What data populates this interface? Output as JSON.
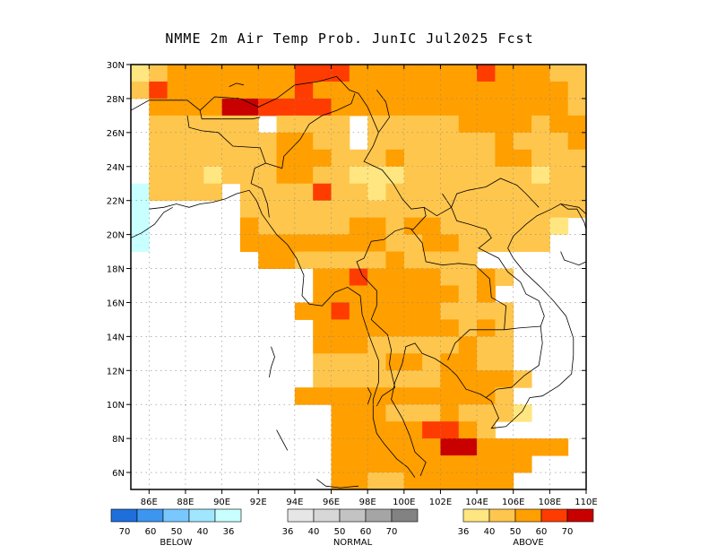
{
  "title": "NMME 2m Air Temp Prob. JunIC  Jul2025 Fcst",
  "map": {
    "lon_range": [
      85,
      110
    ],
    "lat_range": [
      5,
      30
    ],
    "x_ticks": [
      "86E",
      "88E",
      "90E",
      "92E",
      "94E",
      "96E",
      "98E",
      "100E",
      "102E",
      "104E",
      "106E",
      "108E",
      "110E"
    ],
    "y_ticks": [
      "6N",
      "8N",
      "10N",
      "12N",
      "14N",
      "16N",
      "18N",
      "20N",
      "22N",
      "24N",
      "26N",
      "28N",
      "30N"
    ],
    "grid": "dotted"
  },
  "colors": {
    "above_36": "#ffe680",
    "above_40": "#ffc64d",
    "above_50": "#ff9f00",
    "above_60": "#ff3c00",
    "above_70": "#c80000",
    "below_36": "#c8ffff",
    "below_40": "#a0e6ff",
    "below_50": "#78c8ff",
    "below_60": "#3c96f0",
    "below_70": "#1e6edc",
    "normal_36": "#e6e6e6",
    "normal_40": "#d7d7d7",
    "normal_50": "#c3c3c3",
    "normal_60": "#a5a5a5",
    "normal_70": "#828282"
  },
  "legend": {
    "below": {
      "label": "BELOW",
      "values": [
        "70",
        "60",
        "50",
        "40",
        "36"
      ]
    },
    "normal": {
      "label": "NORMAL",
      "values": [
        "36",
        "40",
        "50",
        "60",
        "70"
      ]
    },
    "above": {
      "label": "ABOVE",
      "values": [
        "36",
        "40",
        "50",
        "60",
        "70"
      ]
    }
  }
}
